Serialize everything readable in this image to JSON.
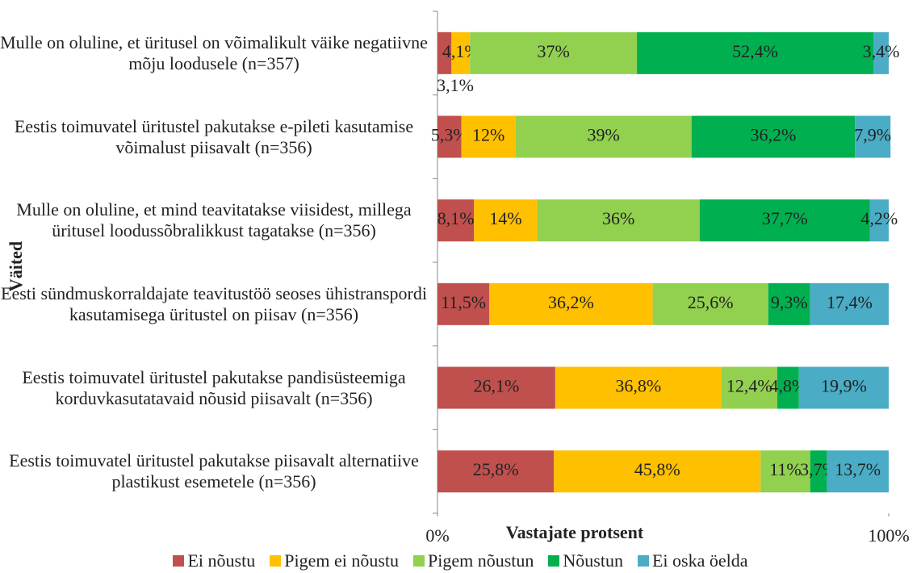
{
  "chart_data": {
    "type": "stacked_barh",
    "y_label": "Väited",
    "x_label": "Vastajate protsent",
    "categories": [
      "Mulle on oluline, et üritusel on võimalikult väike negatiivne mõju loodusele (n=357)",
      "Eestis toimuvatel üritustel pakutakse e-pileti kasutamise võimalust piisavalt (n=356)",
      "Mulle on oluline, et mind teavitatakse viisidest, millega üritusel loodussõbralikkust tagatakse (n=356)",
      "Eesti sündmuskorraldajate teavitustöö seoses ühistranspordi kasutamisega üritustel on piisav (n=356)",
      "Eestis toimuvatel üritustel pakutakse pandisüsteemiga korduvkasutatavaid nõusid piisavalt (n=356)",
      "Eestis toimuvatel üritustel pakutakse piisavalt alternatiive plastikust esemetele (n=356)"
    ],
    "series": [
      {
        "name": "Ei nõustu",
        "color": "#c0504d",
        "values": [
          3.1,
          5.3,
          8.1,
          11.5,
          26.1,
          25.8
        ],
        "value_labels": [
          "3,1%",
          "5,3%",
          "8,1%",
          "11,5%",
          "26,1%",
          "25,8%"
        ]
      },
      {
        "name": "Pigem ei nõustu",
        "color": "#ffc000",
        "values": [
          4.1,
          12,
          14,
          36.2,
          36.8,
          45.8
        ],
        "value_labels": [
          "4,1%",
          "12%",
          "14%",
          "36,2%",
          "36,8%",
          "45,8%"
        ]
      },
      {
        "name": "Pigem nõustun",
        "color": "#92d050",
        "values": [
          37,
          39,
          36,
          25.6,
          12.4,
          11
        ],
        "value_labels": [
          "37%",
          "39%",
          "36%",
          "25,6%",
          "12,4%",
          "11%"
        ]
      },
      {
        "name": "Nõustun",
        "color": "#00b050",
        "values": [
          52.4,
          36.2,
          37.7,
          9.3,
          4.8,
          3.7
        ],
        "value_labels": [
          "52,4%",
          "36,2%",
          "37,7%",
          "9,3%",
          "4,8%",
          "3,7%"
        ]
      },
      {
        "name": "Ei oska öelda",
        "color": "#4bacc6",
        "values": [
          3.4,
          7.9,
          4.2,
          17.4,
          19.9,
          13.7
        ],
        "value_labels": [
          "3,4%",
          "7,9%",
          "4,2%",
          "17,4%",
          "19,9%",
          "13,7%"
        ]
      }
    ],
    "xlim": [
      0,
      100
    ],
    "xticks": [
      {
        "value": 0,
        "label": "0%"
      },
      {
        "value": 100,
        "label": "100%"
      }
    ],
    "legend": "bottom"
  }
}
